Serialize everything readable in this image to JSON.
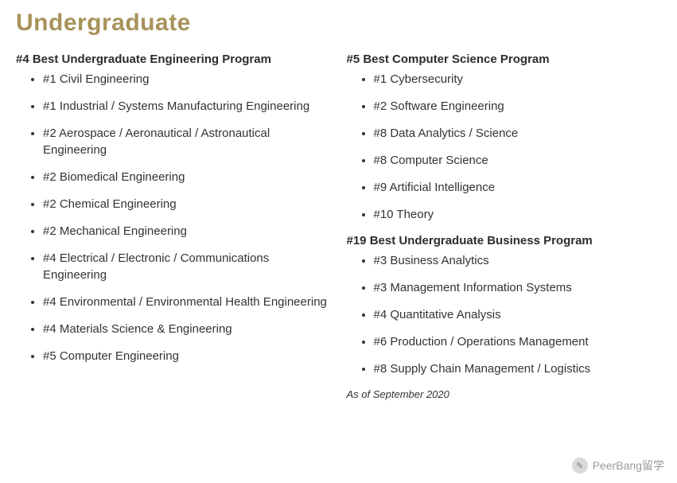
{
  "title": {
    "text": "Undergraduate",
    "color": "#a7925a",
    "fontsize": 30
  },
  "columns": {
    "left": {
      "sections": [
        {
          "heading": "#4 Best Undergraduate Engineering Program",
          "items": [
            "#1 Civil Engineering",
            "#1 Industrial / Systems Manufacturing Engineering",
            "#2 Aerospace / Aeronautical / Astronautical Engineering",
            "#2 Biomedical Engineering",
            "#2 Chemical Engineering",
            "#2 Mechanical Engineering",
            "#4 Electrical / Electronic / Communications Engineering",
            "#4 Environmental / Environmental Health Engineering",
            "#4 Materials Science & Engineering",
            "#5 Computer Engineering"
          ]
        }
      ]
    },
    "right": {
      "sections": [
        {
          "heading": "#5 Best Computer Science Program",
          "items": [
            "#1 Cybersecurity",
            "#2 Software Engineering",
            "#8 Data Analytics / Science",
            "#8 Computer Science",
            "#9 Artificial Intelligence",
            "#10 Theory"
          ]
        },
        {
          "heading": "#19 Best Undergraduate Business Program",
          "items": [
            "#3 Business Analytics",
            "#3 Management Information Systems",
            "#4 Quantitative Analysis",
            "#6 Production / Operations Management",
            "#8 Supply Chain Management / Logistics"
          ]
        }
      ],
      "asof": "As of September 2020"
    }
  },
  "watermark": {
    "text": "PeerBang留学",
    "icon_label": "✎"
  }
}
